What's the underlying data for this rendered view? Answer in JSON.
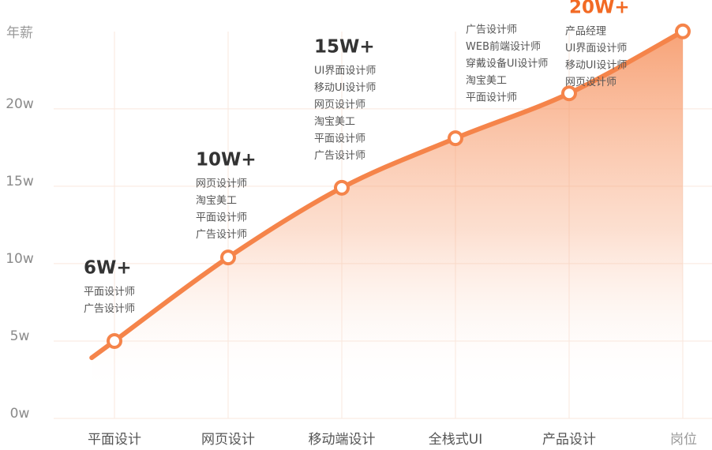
{
  "chart_data": {
    "type": "area",
    "x_label": "岗位",
    "y_label": "年薪",
    "categories": [
      "平面设计",
      "网页设计",
      "移动端设计",
      "全栈式UI",
      "产品设计",
      null
    ],
    "series": [
      {
        "color": "#f5844a",
        "values": [
          5,
          10.4,
          14.9,
          18.1,
          21,
          25
        ]
      }
    ],
    "ylim": [
      0,
      25.5
    ],
    "yticks": [
      {
        "value": 0,
        "label": "0w"
      },
      {
        "value": 5,
        "label": "5w"
      },
      {
        "value": 10,
        "label": "10w"
      },
      {
        "value": 15,
        "label": "15w"
      },
      {
        "value": 20,
        "label": "20w"
      }
    ],
    "grid": true,
    "annotations": [
      {
        "label": "6W+",
        "items": [
          "平面设计师",
          "广告设计师"
        ]
      },
      {
        "label": "10W+",
        "items": [
          "网页设计师",
          "淘宝美工",
          "平面设计师",
          "广告设计师"
        ]
      },
      {
        "label": "15W+",
        "items": [
          "UI界面设计师",
          "移动UI设计师",
          "网页设计师",
          "淘宝美工",
          "平面设计师",
          "广告设计师"
        ]
      },
      {
        "items": [
          "广告设计师",
          "WEB前端设计师",
          "穿戴设备UI设计师",
          "淘宝美工",
          "平面设计师"
        ]
      },
      {
        "label": "20W+",
        "color": "#f26a24",
        "items": [
          "产品经理",
          "UI界面设计师",
          "移动UI设计师",
          "网页设计师"
        ]
      }
    ]
  }
}
